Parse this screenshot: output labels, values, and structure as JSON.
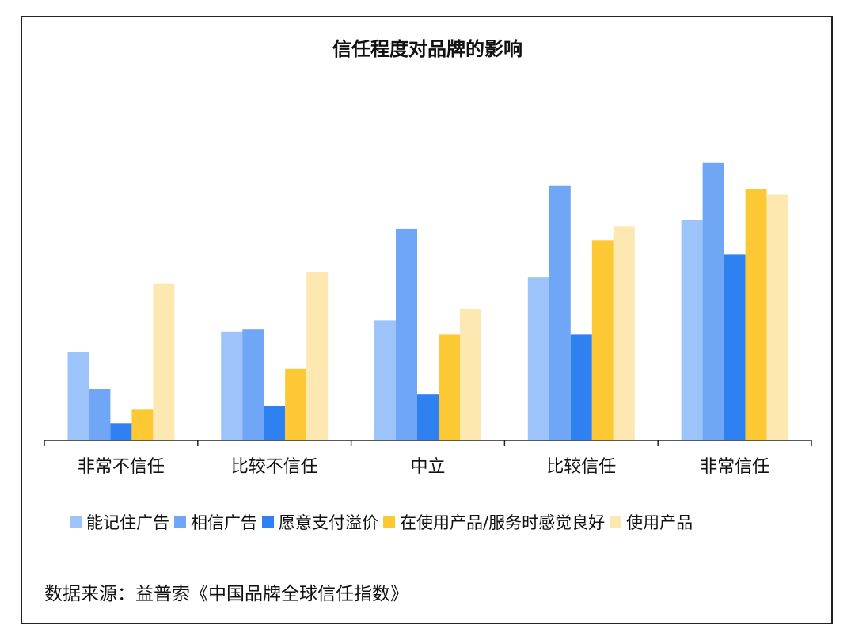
{
  "chart_data": {
    "type": "bar",
    "title": "信任程度对品牌的影响",
    "categories": [
      "非常不信任",
      "比较不信任",
      "中立",
      "比较信任",
      "非常信任"
    ],
    "series": [
      {
        "name": "能记住广告",
        "color": "#9dc3fb",
        "values": [
          31,
          38,
          42,
          57,
          77
        ]
      },
      {
        "name": "相信广告",
        "color": "#6fa7f6",
        "values": [
          18,
          39,
          74,
          89,
          97
        ]
      },
      {
        "name": "愿意支付溢价",
        "color": "#2f80f0",
        "values": [
          6,
          12,
          16,
          37,
          65
        ]
      },
      {
        "name": "在使用产品/服务时感觉良好",
        "color": "#fcc935",
        "values": [
          11,
          25,
          37,
          70,
          88
        ]
      },
      {
        "name": "使用产品",
        "color": "#fde8b2",
        "values": [
          55,
          59,
          46,
          75,
          86
        ]
      }
    ],
    "xlabel": "",
    "ylabel": "",
    "ylim": [
      0,
      100
    ],
    "grid": false,
    "legend_position": "bottom"
  },
  "source": "数据来源：益普索《中国品牌全球信任指数》"
}
